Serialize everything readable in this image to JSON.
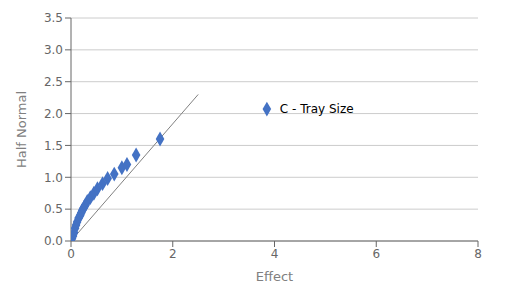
{
  "chart_data": {
    "type": "scatter",
    "title": "",
    "xlabel": "Effect",
    "ylabel": "Half Normal",
    "xlim": [
      0,
      8
    ],
    "ylim": [
      0,
      3.5
    ],
    "xticks": [
      0,
      2,
      4,
      6,
      8
    ],
    "yticks": [
      {
        "value": 0.0,
        "label": "0.0"
      },
      0.5,
      {
        "value": 1.0,
        "label": "1.0"
      },
      1.5,
      {
        "value": 2.0,
        "label": "2.0"
      },
      2.5,
      {
        "value": 3.0,
        "label": "3.0"
      },
      3.5
    ],
    "grid": true,
    "series": [
      {
        "type": "line",
        "color": "#808080",
        "x": [
          0.0,
          2.5
        ],
        "values": [
          0.0,
          2.3
        ]
      },
      {
        "type": "scatter",
        "color": "#4472C4",
        "marker": "diamond",
        "x": [
          0.02,
          0.04,
          0.06,
          0.08,
          0.1,
          0.12,
          0.15,
          0.18,
          0.2,
          0.22,
          0.25,
          0.28,
          0.32,
          0.38,
          0.45,
          0.52,
          0.62,
          0.72,
          0.85,
          1.0,
          1.1,
          1.28,
          1.75,
          3.85
        ],
        "values": [
          0.04,
          0.08,
          0.13,
          0.2,
          0.25,
          0.3,
          0.36,
          0.4,
          0.44,
          0.48,
          0.52,
          0.56,
          0.62,
          0.68,
          0.75,
          0.82,
          0.9,
          0.98,
          1.05,
          1.15,
          1.2,
          1.35,
          1.6,
          2.07
        ]
      }
    ],
    "annotations": [
      {
        "text": "C - Tray Size",
        "x": 3.85,
        "y": 2.07
      }
    ]
  }
}
